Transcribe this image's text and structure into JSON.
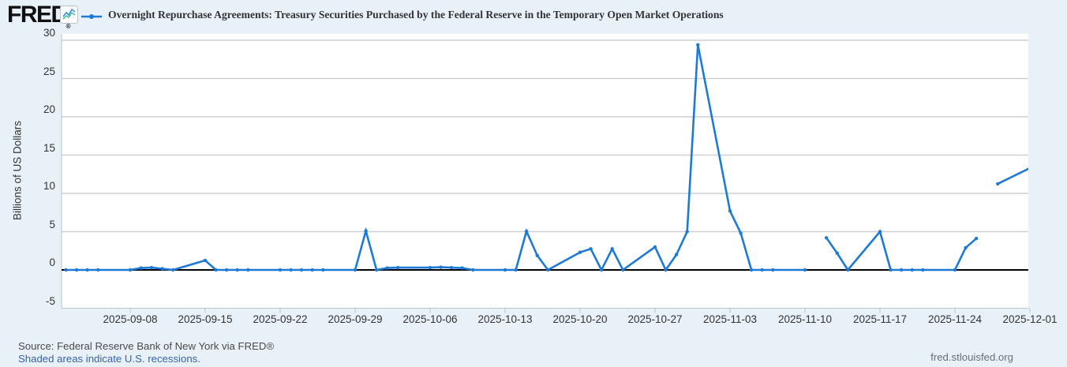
{
  "header": {
    "logo_text": "FRED",
    "logo_registered": "®",
    "title": "Overnight Repurchase Agreements: Treasury Securities Purchased by the Federal Reserve in the Temporary Open Market Operations"
  },
  "footer": {
    "source": "Source: Federal Reserve Bank of New York via FRED®",
    "recessions_note": "Shaded areas indicate U.S. recessions.",
    "site": "fred.stlouisfed.org"
  },
  "colors": {
    "background": "#e8f1f8",
    "plot_background": "#ffffff",
    "series_line": "#1f7ad6",
    "gridline": "#cfcfcf",
    "zero_line": "#000000",
    "axis_border": "#b9c4cc",
    "link_blue": "#3a63a8",
    "spark_icon_blue": "#3f8fd2",
    "spark_icon_teal": "#53bfa0"
  },
  "chart_data": {
    "type": "line",
    "title": "Overnight Repurchase Agreements: Treasury Securities Purchased by the Federal Reserve in the Temporary Open Market Operations",
    "xlabel": "",
    "ylabel": "Billions of US Dollars",
    "yticks": [
      30,
      25,
      20,
      15,
      10,
      5,
      0,
      -5
    ],
    "ylim": [
      -5,
      30.8
    ],
    "xticks": [
      "2025-09-08",
      "2025-09-15",
      "2025-09-22",
      "2025-09-29",
      "2025-10-06",
      "2025-10-13",
      "2025-10-20",
      "2025-10-27",
      "2025-11-03",
      "2025-11-10",
      "2025-11-17",
      "2025-11-24",
      "2025-12-01"
    ],
    "x_axis_start": "2025-09-01",
    "x_axis_end": "2025-12-01",
    "grid": "horizontal",
    "zero_line": true,
    "legend_position": "top-left",
    "frequency": "daily (business days, gaps on market holidays)",
    "series": [
      {
        "name": "Overnight Repurchase Agreements: Treasury Securities Purchased by the Federal Reserve in the Temporary Open Market Operations",
        "color": "#1f7ad6",
        "points": [
          [
            "2025-09-02",
            0
          ],
          [
            "2025-09-03",
            0
          ],
          [
            "2025-09-04",
            0
          ],
          [
            "2025-09-05",
            0
          ],
          [
            "2025-09-08",
            0
          ],
          [
            "2025-09-09",
            0.25
          ],
          [
            "2025-09-10",
            0.3
          ],
          [
            "2025-09-11",
            0.15
          ],
          [
            "2025-09-12",
            0
          ],
          [
            "2025-09-15",
            1.25
          ],
          [
            "2025-09-16",
            0
          ],
          [
            "2025-09-17",
            0
          ],
          [
            "2025-09-18",
            0
          ],
          [
            "2025-09-19",
            0
          ],
          [
            "2025-09-22",
            0
          ],
          [
            "2025-09-23",
            0
          ],
          [
            "2025-09-24",
            0
          ],
          [
            "2025-09-25",
            0
          ],
          [
            "2025-09-26",
            0
          ],
          [
            "2025-09-29",
            0
          ],
          [
            "2025-09-30",
            5.1
          ],
          [
            "2025-10-01",
            0
          ],
          [
            "2025-10-02",
            0.25
          ],
          [
            "2025-10-03",
            0.3
          ],
          [
            "2025-10-06",
            0.3
          ],
          [
            "2025-10-07",
            0.35
          ],
          [
            "2025-10-08",
            0.3
          ],
          [
            "2025-10-09",
            0.25
          ],
          [
            "2025-10-10",
            0
          ],
          [
            "2025-10-13",
            0
          ],
          [
            "2025-10-14",
            0
          ],
          [
            "2025-10-15",
            5.05
          ],
          [
            "2025-10-16",
            1.9
          ],
          [
            "2025-10-17",
            0
          ],
          [
            "2025-10-20",
            2.3
          ],
          [
            "2025-10-21",
            2.75
          ],
          [
            "2025-10-22",
            0
          ],
          [
            "2025-10-23",
            2.75
          ],
          [
            "2025-10-24",
            0
          ],
          [
            "2025-10-27",
            3.0
          ],
          [
            "2025-10-28",
            0
          ],
          [
            "2025-10-29",
            2.0
          ],
          [
            "2025-10-30",
            5.0
          ],
          [
            "2025-10-31",
            29.4
          ],
          [
            "2025-11-03",
            7.7
          ],
          [
            "2025-11-04",
            4.8
          ],
          [
            "2025-11-05",
            0
          ],
          [
            "2025-11-06",
            0
          ],
          [
            "2025-11-07",
            0
          ],
          [
            "2025-11-10",
            0
          ],
          [
            "2025-11-11",
            null
          ],
          [
            "2025-11-12",
            4.2
          ],
          [
            "2025-11-13",
            2.2
          ],
          [
            "2025-11-14",
            0
          ],
          [
            "2025-11-17",
            5.0
          ],
          [
            "2025-11-18",
            0
          ],
          [
            "2025-11-19",
            0
          ],
          [
            "2025-11-20",
            0
          ],
          [
            "2025-11-21",
            0
          ],
          [
            "2025-11-24",
            0
          ],
          [
            "2025-11-25",
            2.9
          ],
          [
            "2025-11-26",
            4.1
          ],
          [
            "2025-11-27",
            null
          ],
          [
            "2025-11-28",
            11.25
          ],
          [
            "2025-12-01",
            13.3
          ]
        ]
      }
    ]
  }
}
